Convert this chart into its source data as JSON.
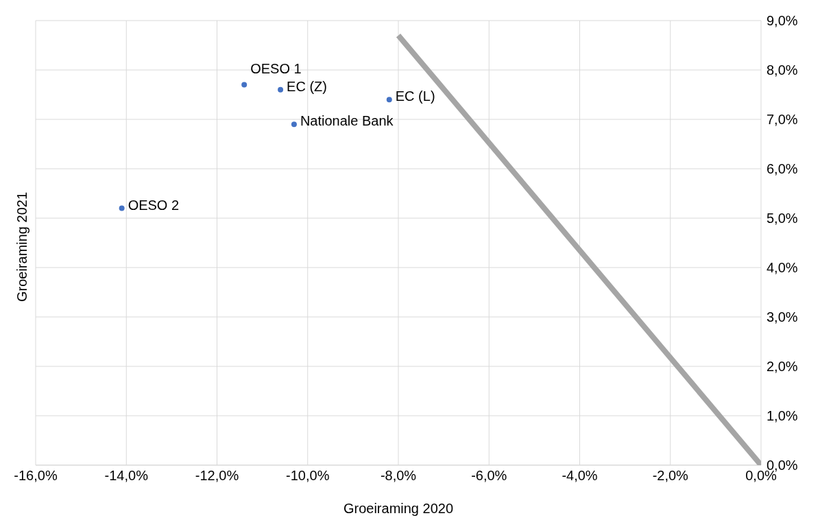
{
  "chart_data": {
    "type": "scatter",
    "xlabel": "Groeiraming 2020",
    "ylabel": "Groeiraming 2021",
    "xlim": [
      -16,
      0
    ],
    "xticks": [
      {
        "value": -16,
        "label": "-16,0%"
      },
      {
        "value": -14,
        "label": "-14,0%"
      },
      {
        "value": -12,
        "label": "-12,0%"
      },
      {
        "value": -10,
        "label": "-10,0%"
      },
      {
        "value": -8,
        "label": "-8,0%"
      },
      {
        "value": -6,
        "label": "-6,0%"
      },
      {
        "value": -4,
        "label": "-4,0%"
      },
      {
        "value": -2,
        "label": "-2,0%"
      },
      {
        "value": 0,
        "label": "0,0%"
      }
    ],
    "ylim": [
      0,
      9
    ],
    "yticks": [
      {
        "value": 0,
        "label": "0,0%"
      },
      {
        "value": 1,
        "label": "1,0%"
      },
      {
        "value": 2,
        "label": "2,0%"
      },
      {
        "value": 3,
        "label": "3,0%"
      },
      {
        "value": 4,
        "label": "4,0%"
      },
      {
        "value": 5,
        "label": "5,0%"
      },
      {
        "value": 6,
        "label": "6,0%"
      },
      {
        "value": 7,
        "label": "7,0%"
      },
      {
        "value": 8,
        "label": "8,0%"
      },
      {
        "value": 9,
        "label": "9,0%"
      }
    ],
    "grid": true,
    "legend": false,
    "series": [
      {
        "type": "line",
        "color": "#a5a5a5",
        "x": [
          -8,
          0
        ],
        "values": [
          8.7,
          0
        ],
        "marker": "none",
        "line_style": "solid"
      },
      {
        "name": "OESO 1",
        "color": "#4472c4",
        "x": [
          -11.4
        ],
        "values": [
          7.7
        ],
        "marker": "circle"
      },
      {
        "name": "EC (Z)",
        "color": "#4472c4",
        "x": [
          -10.6
        ],
        "values": [
          7.6
        ],
        "marker": "circle"
      },
      {
        "name": "EC (L)",
        "color": "#4472c4",
        "x": [
          -8.2
        ],
        "values": [
          7.4
        ],
        "marker": "circle"
      },
      {
        "name": "Nationale Bank",
        "color": "#4472c4",
        "x": [
          -10.3
        ],
        "values": [
          6.9
        ],
        "marker": "circle"
      },
      {
        "name": "OESO 2",
        "color": "#4472c4",
        "x": [
          -14.1
        ],
        "values": [
          5.2
        ],
        "marker": "circle"
      }
    ]
  }
}
